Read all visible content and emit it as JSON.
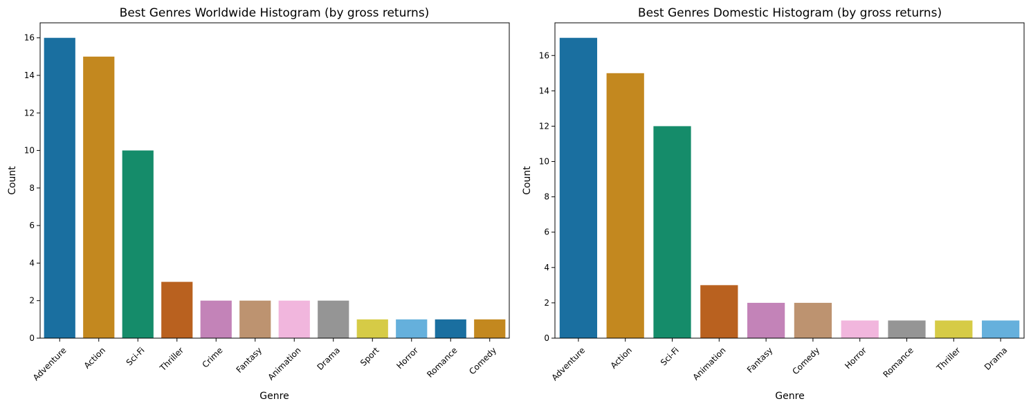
{
  "chart_data": [
    {
      "type": "bar",
      "title": "Best Genres Worldwide Histogram (by gross returns)",
      "xlabel": "Genre",
      "ylabel": "Count",
      "categories": [
        "Adventure",
        "Action",
        "Sci-Fi",
        "Thriller",
        "Crime",
        "Fantasy",
        "Animation",
        "Drama",
        "Sport",
        "Horror",
        "Romance",
        "Comedy"
      ],
      "values": [
        16,
        15,
        10,
        3,
        2,
        2,
        2,
        2,
        1,
        1,
        1,
        1
      ],
      "colors": [
        "#1a6fa0",
        "#c3881f",
        "#158c6a",
        "#b9611f",
        "#c383b8",
        "#bd9370",
        "#f1b6dd",
        "#959595",
        "#d6cb46",
        "#65b0dc",
        "#1a6fa0",
        "#c3881f"
      ],
      "ylim": [
        0,
        16.8
      ],
      "yticks": [
        0,
        2,
        4,
        6,
        8,
        10,
        12,
        14,
        16
      ],
      "grid": false
    },
    {
      "type": "bar",
      "title": "Best Genres Domestic Histogram (by gross returns)",
      "xlabel": "Genre",
      "ylabel": "Count",
      "categories": [
        "Adventure",
        "Action",
        "Sci-Fi",
        "Animation",
        "Fantasy",
        "Comedy",
        "Horror",
        "Romance",
        "Thriller",
        "Drama"
      ],
      "values": [
        17,
        15,
        12,
        3,
        2,
        2,
        1,
        1,
        1,
        1
      ],
      "colors": [
        "#1a6fa0",
        "#c3881f",
        "#158c6a",
        "#b9611f",
        "#c383b8",
        "#bd9370",
        "#f1b6dd",
        "#959595",
        "#d6cb46",
        "#65b0dc"
      ],
      "ylim": [
        0,
        17.85
      ],
      "yticks": [
        0,
        2,
        4,
        6,
        8,
        10,
        12,
        14,
        16
      ],
      "grid": false
    }
  ]
}
